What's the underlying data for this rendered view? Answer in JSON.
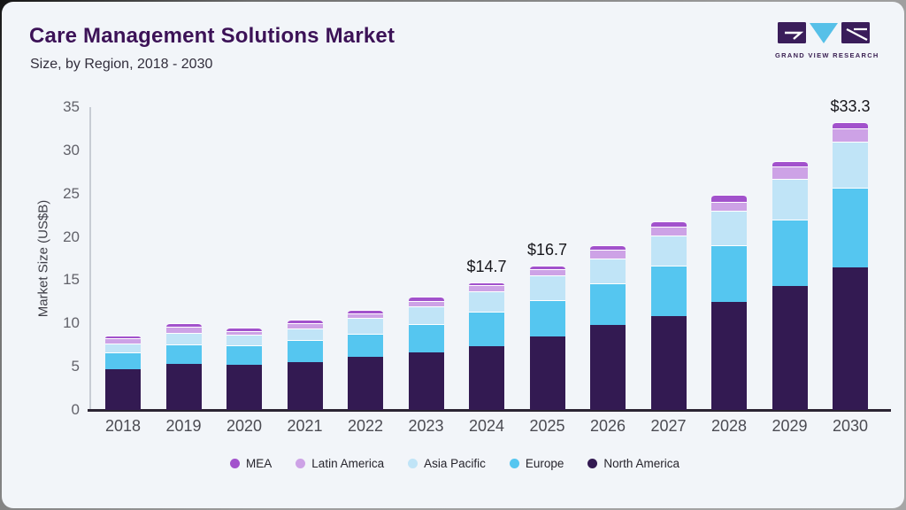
{
  "header": {
    "title": "Care Management Solutions Market",
    "subtitle": "Size, by Region, 2018 - 2030",
    "brand": "GRAND VIEW RESEARCH"
  },
  "chart_data": {
    "type": "bar",
    "stacked": true,
    "title": "Care Management Solutions Market Size, by Region, 2018 - 2030",
    "xlabel": "",
    "ylabel": "Market Size (US$B)",
    "ylim": [
      0,
      35
    ],
    "yticks": [
      0,
      5,
      10,
      15,
      20,
      25,
      30,
      35
    ],
    "grid": false,
    "legend_position": "bottom",
    "categories": [
      "2018",
      "2019",
      "2020",
      "2021",
      "2022",
      "2023",
      "2024",
      "2025",
      "2026",
      "2027",
      "2028",
      "2029",
      "2030"
    ],
    "series": [
      {
        "name": "North America",
        "color": "#331a52",
        "values": [
          4.7,
          5.3,
          5.2,
          5.5,
          6.1,
          6.7,
          7.4,
          8.5,
          9.8,
          10.8,
          12.5,
          14.3,
          16.5
        ]
      },
      {
        "name": "Europe",
        "color": "#55c6f0",
        "values": [
          2.0,
          2.3,
          2.25,
          2.6,
          2.7,
          3.2,
          4.0,
          4.2,
          4.8,
          5.9,
          6.5,
          7.7,
          9.2
        ]
      },
      {
        "name": "Asia Pacific",
        "color": "#c0e4f7",
        "values": [
          1.0,
          1.3,
          1.2,
          1.3,
          1.8,
          2.1,
          2.3,
          2.9,
          2.9,
          3.5,
          4.0,
          4.7,
          5.3
        ]
      },
      {
        "name": "Latin America",
        "color": "#cda2e6",
        "values": [
          0.6,
          0.75,
          0.5,
          0.6,
          0.55,
          0.6,
          0.7,
          0.7,
          1.0,
          1.0,
          1.1,
          1.4,
          1.5
        ]
      },
      {
        "name": "MEA",
        "color": "#a252cc",
        "values": [
          0.3,
          0.35,
          0.35,
          0.4,
          0.45,
          0.5,
          0.3,
          0.4,
          0.5,
          0.6,
          0.8,
          0.7,
          0.8
        ]
      }
    ],
    "totals": [
      8.6,
      10.0,
      9.5,
      10.4,
      11.6,
      13.1,
      14.7,
      16.7,
      19.0,
      21.8,
      24.9,
      28.8,
      33.3
    ],
    "annotations": [
      {
        "category": "2024",
        "text": "$14.7"
      },
      {
        "category": "2025",
        "text": "$16.7"
      },
      {
        "category": "2030",
        "text": "$33.3"
      }
    ]
  },
  "colors": {
    "background": "#f2f5f9",
    "title": "#3c1257",
    "axis_line": "#2b2433",
    "logo_dark": "#3a1d5a",
    "logo_blue": "#56c0e8"
  }
}
